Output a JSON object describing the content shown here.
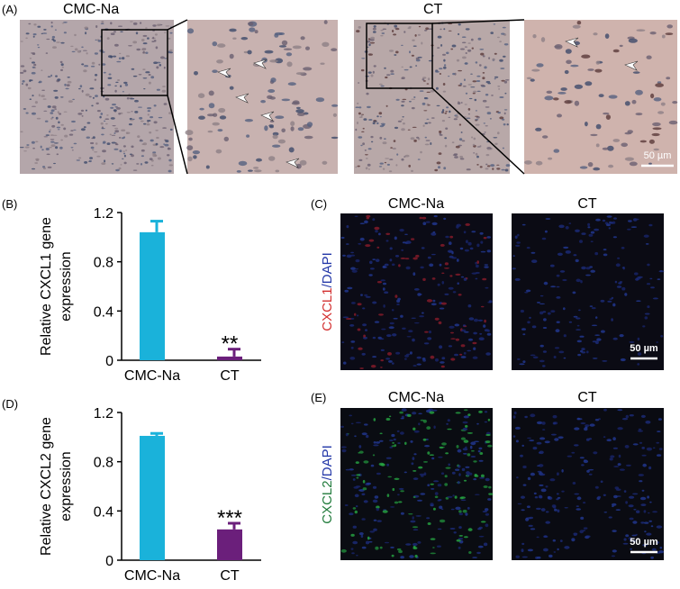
{
  "chart_data": [
    {
      "type": "bar",
      "panel_label": "(B)",
      "y_label": [
        "Relative CXCL1 gene",
        "expression"
      ],
      "categories": [
        "CMC-Na",
        "CT"
      ],
      "values": [
        1.04,
        0.03
      ],
      "errors": [
        0.09,
        0.06
      ],
      "colors": [
        "#1ab2da",
        "#6b1f7b"
      ],
      "annotation": "**",
      "ylim": [
        0,
        1.2
      ],
      "yticks": [
        0,
        0.4,
        0.8,
        1.2
      ]
    },
    {
      "type": "bar",
      "panel_label": "(D)",
      "y_label": [
        "Relative CXCL2 gene",
        "expression"
      ],
      "categories": [
        "CMC-Na",
        "CT"
      ],
      "values": [
        1.01,
        0.25
      ],
      "errors": [
        0.02,
        0.05
      ],
      "colors": [
        "#1ab2da",
        "#6b1f7b"
      ],
      "annotation": "***",
      "ylim": [
        0,
        1.2
      ],
      "yticks": [
        0,
        0.4,
        0.8,
        1.2
      ]
    }
  ],
  "panels": {
    "A": {
      "label": "(A)",
      "groups": [
        "CMC-Na",
        "CT"
      ],
      "scale_bar": "50 µm"
    },
    "C": {
      "label": "(C)",
      "groups": [
        "CMC-Na",
        "CT"
      ],
      "marker": "CXCL1",
      "stain": "/DAPI",
      "scale_bar": "50 µm"
    },
    "E": {
      "label": "(E)",
      "groups": [
        "CMC-Na",
        "CT"
      ],
      "marker": "CXCL2",
      "stain": "/DAPI",
      "scale_bar": "50 µm"
    }
  }
}
